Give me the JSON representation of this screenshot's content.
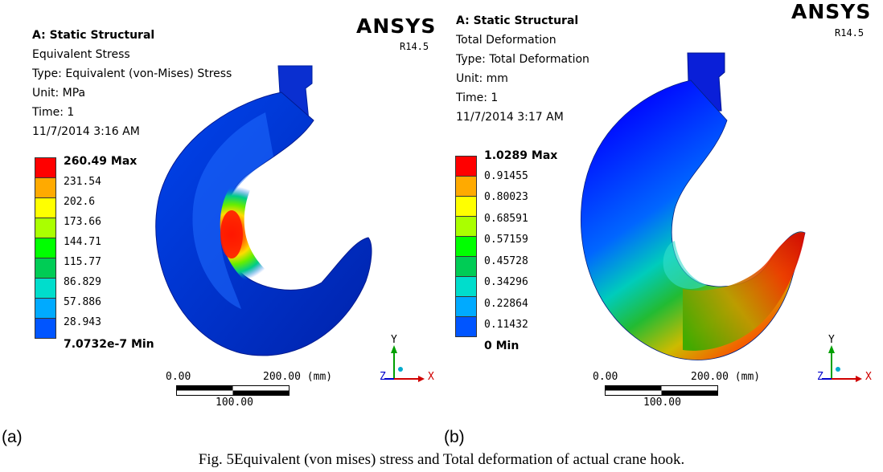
{
  "panel_a": {
    "letter": "(a)",
    "info_lines": [
      "A: Static Structural",
      "Equivalent Stress",
      "Type: Equivalent (von-Mises) Stress",
      "Unit: MPa",
      "Time: 1",
      "11/7/2014 3:16 AM"
    ],
    "brand": "ANSYS",
    "version": "R14.5",
    "legend_labels": [
      "260.49 Max",
      "231.54",
      "202.6",
      "173.66",
      "144.71",
      "115.77",
      "86.829",
      "57.886",
      "28.943",
      "7.0732e-7 Min"
    ],
    "scale": {
      "start": "0.00",
      "end": "200.00 (mm)",
      "mid": "100.00"
    },
    "triad": {
      "y": "Y",
      "x": "X",
      "z": "Z"
    }
  },
  "panel_b": {
    "letter": "(b)",
    "info_lines": [
      "A: Static Structural",
      "Total Deformation",
      "Type: Total Deformation",
      "Unit: mm",
      "Time: 1",
      "11/7/2014 3:17 AM"
    ],
    "brand": "ANSYS",
    "version": "R14.5",
    "legend_labels": [
      "1.0289 Max",
      "0.91455",
      "0.80023",
      "0.68591",
      "0.57159",
      "0.45728",
      "0.34296",
      "0.22864",
      "0.11432",
      "0 Min"
    ],
    "scale": {
      "start": "0.00",
      "end": "200.00 (mm)",
      "mid": "100.00"
    },
    "triad": {
      "y": "Y",
      "x": "X",
      "z": "Z"
    }
  },
  "legend_colors": [
    "#ff0000",
    "#ffaa00",
    "#ffff00",
    "#aaff00",
    "#00ff00",
    "#00cc55",
    "#00ddcc",
    "#00aaff",
    "#0055ff",
    "#0000ff"
  ],
  "caption": "Fig. 5Equivalent (von mises) stress and Total deformation of actual crane hook."
}
